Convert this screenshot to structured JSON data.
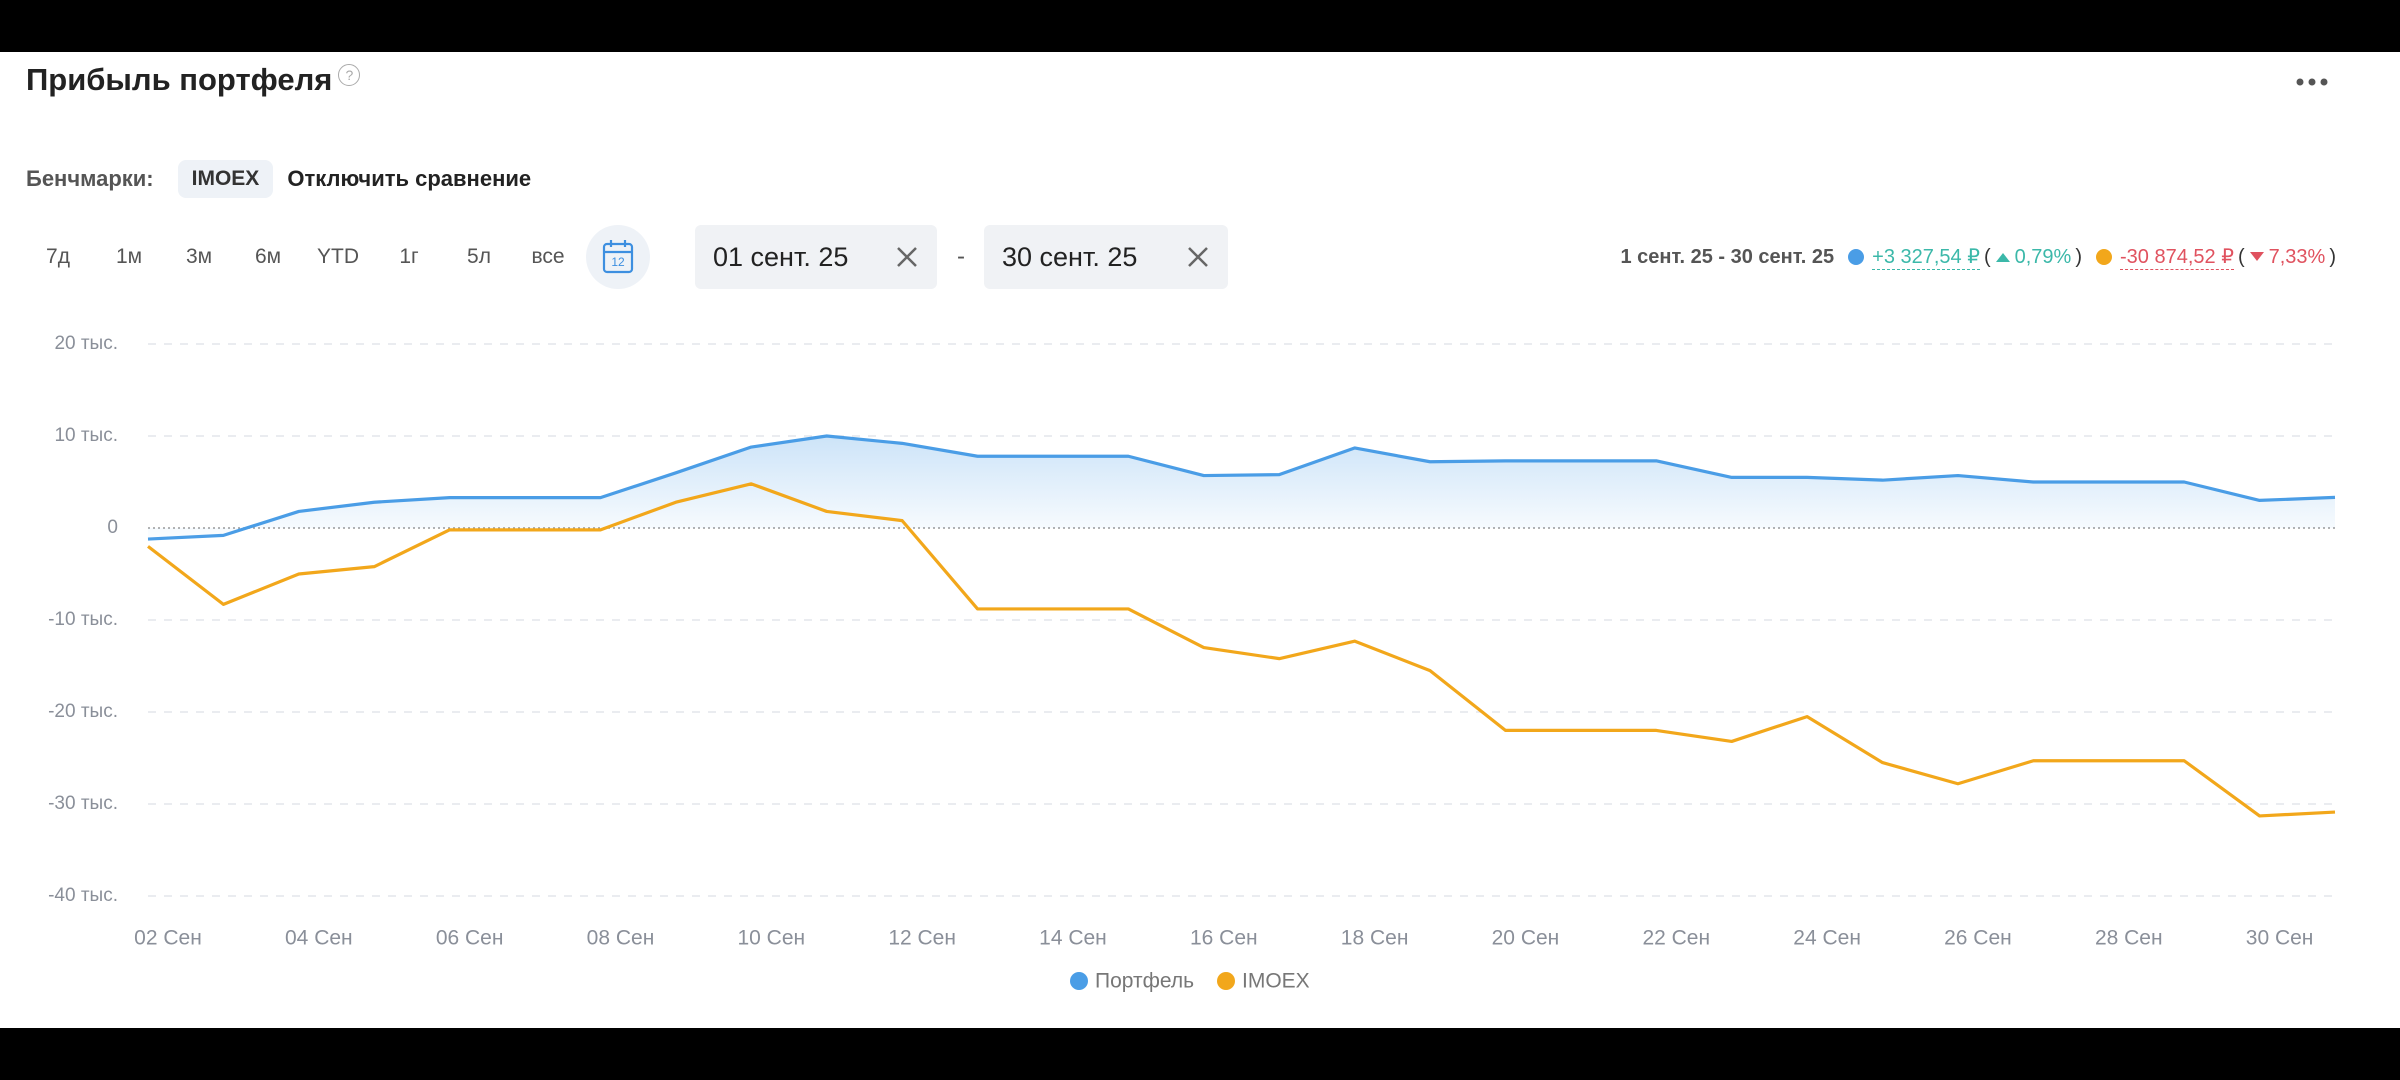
{
  "header": {
    "title": "Прибыль портфеля",
    "help": "?"
  },
  "benchmarks": {
    "label": "Бенчмарки:",
    "chip": "IMOEX",
    "disable": "Отключить сравнение"
  },
  "periods": [
    "7д",
    "1м",
    "3м",
    "6м",
    "YTD",
    "1г",
    "5л",
    "все"
  ],
  "calendar_day": "12",
  "date_from": "01 сент. 25",
  "date_separator": "-",
  "date_to": "30 сент. 25",
  "summary": {
    "range": "1 сент. 25 - 30 сент. 25",
    "portfolio": {
      "change": "+3 327,54 ₽",
      "open": "(",
      "pct": "0,79%",
      "close": ")"
    },
    "imoex": {
      "change": "-30 874,52 ₽",
      "open": "(",
      "pct": "7,33%",
      "close": ")"
    }
  },
  "chart_data": {
    "type": "line",
    "categories": [
      "02 Сен",
      null,
      "04 Сен",
      null,
      "06 Сен",
      null,
      "08 Сен",
      null,
      "10 Сен",
      null,
      "12 Сен",
      null,
      "14 Сен",
      null,
      "16 Сен",
      null,
      "18 Сен",
      null,
      "20 Сен",
      null,
      "22 Сен",
      null,
      "24 Сен",
      null,
      "26 Сен",
      null,
      "28 Сен",
      null,
      "30 Сен",
      null
    ],
    "series": [
      {
        "name": "Портфель",
        "color": "#4a9de6",
        "values": [
          -1200,
          -800,
          1800,
          2800,
          3300,
          3300,
          3300,
          6000,
          8800,
          10000,
          9200,
          7800,
          7800,
          7800,
          5700,
          5800,
          8700,
          7200,
          7300,
          7300,
          7300,
          5500,
          5500,
          5200,
          5700,
          5000,
          5000,
          5000,
          3000,
          3328
        ]
      },
      {
        "name": "IMOEX",
        "color": "#f2a71b",
        "values": [
          -2000,
          -8300,
          -5000,
          -4200,
          -200,
          -200,
          -200,
          2800,
          4800,
          1800,
          800,
          -8800,
          -8800,
          -8800,
          -13000,
          -14200,
          -12300,
          -15500,
          -22000,
          -22000,
          -22000,
          -23200,
          -20500,
          -25500,
          -27800,
          -25300,
          -25300,
          -25300,
          -31300,
          -30875
        ]
      }
    ],
    "ylim": [
      -40000,
      20000
    ],
    "yticks": [
      {
        "value": -40000,
        "label": "-40 тыс."
      },
      {
        "value": -30000,
        "label": "-30 тыс."
      },
      {
        "value": -20000,
        "label": "-20 тыс."
      },
      {
        "value": -10000,
        "label": "-10 тыс."
      },
      0,
      {
        "value": 10000,
        "label": "10 тыс."
      },
      {
        "value": 20000,
        "label": "20 тыс."
      }
    ],
    "grid": true,
    "legend": "bottom"
  }
}
